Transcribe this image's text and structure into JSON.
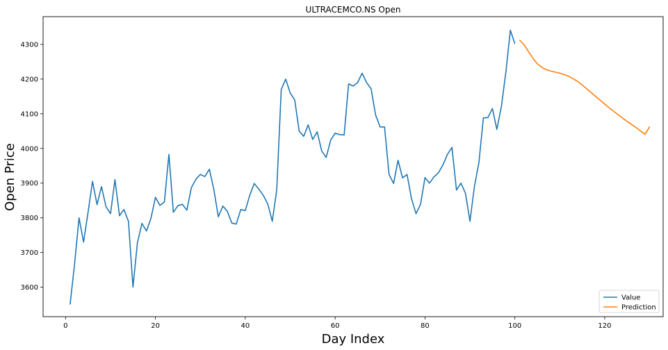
{
  "chart_data": {
    "type": "line",
    "title": "ULTRACEMCO.NS Open",
    "xlabel": "Day Index",
    "ylabel": "Open Price",
    "xlim": [
      -5,
      133
    ],
    "ylim": [
      3515,
      4380
    ],
    "xticks": [
      0,
      20,
      40,
      60,
      80,
      100,
      120
    ],
    "yticks": [
      3600,
      3700,
      3800,
      3900,
      4000,
      4100,
      4200,
      4300
    ],
    "grid": false,
    "legend_position": "lower-right",
    "series": [
      {
        "name": "Value",
        "color": "#1f77b4",
        "x": [
          1,
          2,
          3,
          4,
          5,
          6,
          7,
          8,
          9,
          10,
          11,
          12,
          13,
          14,
          15,
          16,
          17,
          18,
          19,
          20,
          21,
          22,
          23,
          24,
          25,
          26,
          27,
          28,
          29,
          30,
          31,
          32,
          33,
          34,
          35,
          36,
          37,
          38,
          39,
          40,
          41,
          42,
          43,
          44,
          45,
          46,
          47,
          48,
          49,
          50,
          51,
          52,
          53,
          54,
          55,
          56,
          57,
          58,
          59,
          60,
          61,
          62,
          63,
          64,
          65,
          66,
          67,
          68,
          69,
          70,
          71,
          72,
          73,
          74,
          75,
          76,
          77,
          78,
          79,
          80,
          81,
          82,
          83,
          84,
          85,
          86,
          87,
          88,
          89,
          90,
          91,
          92,
          93,
          94,
          95,
          96,
          97,
          98,
          99,
          100
        ],
        "values": [
          3550,
          3665,
          3800,
          3730,
          3815,
          3905,
          3838,
          3890,
          3832,
          3812,
          3910,
          3806,
          3824,
          3790,
          3600,
          3728,
          3784,
          3762,
          3798,
          3859,
          3836,
          3846,
          3983,
          3816,
          3835,
          3839,
          3822,
          3887,
          3911,
          3925,
          3919,
          3940,
          3882,
          3803,
          3834,
          3819,
          3785,
          3782,
          3824,
          3821,
          3865,
          3899,
          3883,
          3865,
          3840,
          3790,
          3880,
          4170,
          4200,
          4160,
          4140,
          4050,
          4035,
          4068,
          4026,
          4048,
          3993,
          3974,
          4024,
          4044,
          4040,
          4039,
          4186,
          4180,
          4190,
          4217,
          4190,
          4172,
          4097,
          4062,
          4062,
          3925,
          3899,
          3966,
          3915,
          3925,
          3855,
          3812,
          3839,
          3916,
          3900,
          3918,
          3930,
          3953,
          3983,
          4003,
          3880,
          3900,
          3871,
          3790,
          3890,
          3960,
          4088,
          4089,
          4115,
          4055,
          4121,
          4221,
          4341,
          4302
        ]
      },
      {
        "name": "Prediction",
        "color": "#ff7f0e",
        "x": [
          101,
          102,
          103,
          104,
          105,
          106,
          107,
          108,
          109,
          110,
          111,
          112,
          113,
          114,
          115,
          116,
          117,
          118,
          119,
          120,
          121,
          122,
          123,
          124,
          125,
          126,
          127,
          128,
          129,
          130
        ],
        "values": [
          4313,
          4300,
          4280,
          4260,
          4244,
          4234,
          4227,
          4223,
          4220,
          4217,
          4213,
          4208,
          4201,
          4193,
          4183,
          4172,
          4161,
          4150,
          4139,
          4128,
          4117,
          4107,
          4097,
          4087,
          4078,
          4069,
          4060,
          4050,
          4041,
          4063
        ]
      }
    ]
  }
}
